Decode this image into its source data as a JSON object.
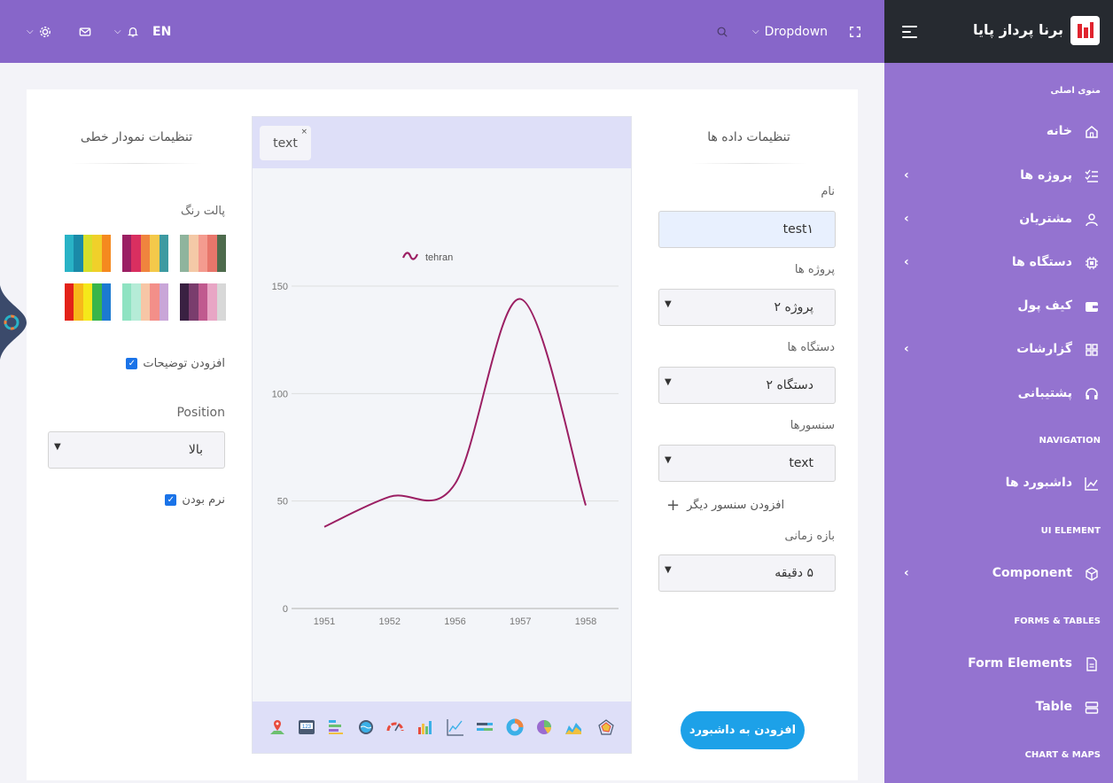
{
  "topbar": {
    "fullscreen_icon": "fullscreen-icon",
    "dropdown_label": "Dropdown",
    "search_icon": "search-icon",
    "lang": "EN",
    "bell_icon": "bell-icon",
    "mail_icon": "mail-icon",
    "gear_icon": "gear-icon"
  },
  "sidebar": {
    "brand": "برنا پرداز پایا",
    "sections": {
      "main": "منوی اصلی",
      "navigation": "NAVIGATION",
      "ui": "UI ELEMENT",
      "forms": "FORMS & TABLES",
      "charts": "CHART & MAPS"
    },
    "items": [
      {
        "label": "خانه",
        "icon": "home-icon"
      },
      {
        "label": "پروژه ها",
        "icon": "checklist-icon"
      },
      {
        "label": "مشتریان",
        "icon": "user-icon"
      },
      {
        "label": "دستگاه ها",
        "icon": "chip-icon"
      },
      {
        "label": "کیف پول",
        "icon": "wallet-icon"
      },
      {
        "label": "گزارشات",
        "icon": "grid-icon"
      },
      {
        "label": "پشتیبانی",
        "icon": "headset-icon"
      },
      {
        "label": "داشبورد ها",
        "icon": "chart-line-icon"
      },
      {
        "label": "Component",
        "icon": "cube-icon"
      },
      {
        "label": "Form Elements",
        "icon": "document-icon"
      },
      {
        "label": "Table",
        "icon": "table-icon"
      }
    ]
  },
  "data_settings": {
    "title": "تنظیمات داده ها",
    "name_label": "نام",
    "name_value": "test۱",
    "project_label": "پروژه ها",
    "project_value": "پروژه ۲",
    "device_label": "دستگاه ها",
    "device_value": "دستگاه ۲",
    "sensor_label": "سنسورها",
    "sensor_value": "text",
    "add_sensor": "افزودن سنسور دیگر",
    "range_label": "بازه زمانی",
    "range_value": "۵ دقیقه",
    "add_button": "افزودن به داشبورد"
  },
  "chart_settings": {
    "title": "تنظیمات نمودار خطی",
    "palette_label": "پالت رنگ",
    "palettes": [
      [
        "#29b3c6",
        "#1a8aa8",
        "#d7df2a",
        "#f0d02a",
        "#f58a1f"
      ],
      [
        "#9b1f63",
        "#d92f60",
        "#f0843e",
        "#f4c94a",
        "#3d9aa1"
      ],
      [
        "#8fb49d",
        "#f4c9a7",
        "#f49b8f",
        "#e8766b",
        "#4e6b4d"
      ],
      [
        "#e32219",
        "#f7b81a",
        "#f5e81a",
        "#39b54a",
        "#1c7ad1"
      ],
      [
        "#8fe3c2",
        "#b5ecd7",
        "#f7c6a6",
        "#f38f89",
        "#c9a6d8"
      ],
      [
        "#3a2142",
        "#7a3d6d",
        "#c05a8f",
        "#e8a6c5",
        "#d8d8d8"
      ]
    ],
    "descriptions_label": "افزودن توضیحات",
    "position_label": "Position",
    "position_value": "بالا",
    "smooth_label": "نرم بودن"
  },
  "chart_tab": "text",
  "chart_data": {
    "type": "line",
    "x": [
      "1951",
      "1952",
      "1956",
      "1957",
      "1958"
    ],
    "series": [
      {
        "name": "tehran",
        "values": [
          38,
          52,
          58,
          144,
          48
        ],
        "color": "#9b1f63"
      }
    ],
    "yticks": [
      0,
      50,
      100,
      150
    ],
    "ylim": [
      0,
      150
    ],
    "grid": true,
    "legend_position": "top"
  },
  "chart_toolbar": [
    "map-marker-icon",
    "number-icon",
    "bar-horizontal-icon",
    "liquid-gauge-icon",
    "gauge-icon",
    "bar-chart-icon",
    "line-chart-icon",
    "stacked-bar-icon",
    "donut-chart-icon",
    "pie-chart-icon",
    "area-chart-icon",
    "radar-chart-icon"
  ]
}
